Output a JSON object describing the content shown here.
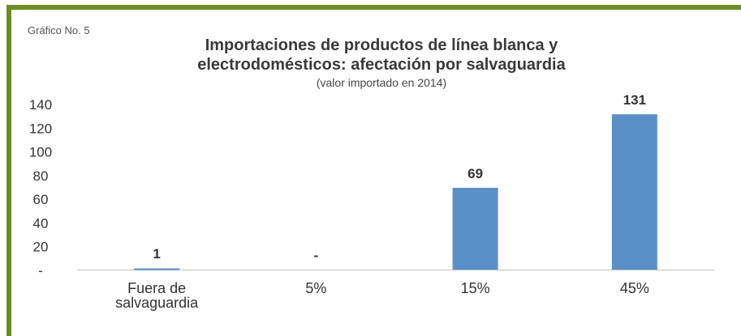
{
  "chart_data": {
    "type": "bar",
    "number_label": "Gráfico No. 5",
    "title_lines": [
      "Importaciones de productos de línea blanca y",
      "electrodomésticos: afectación por salvaguardia"
    ],
    "subtitle": "(valor importado en 2014)",
    "categories": [
      [
        "Fuera de",
        "salvaguardia"
      ],
      [
        "5%"
      ],
      [
        "15%"
      ],
      [
        "45%"
      ]
    ],
    "values": [
      1,
      0,
      69,
      131
    ],
    "data_labels": [
      "1",
      "-",
      "69",
      "131"
    ],
    "y_ticks": [
      "-",
      "20",
      "40",
      "60",
      "80",
      "100",
      "120",
      "140"
    ],
    "ylim": [
      0,
      140
    ],
    "bar_color": "#5b8fc7",
    "grid": false
  }
}
